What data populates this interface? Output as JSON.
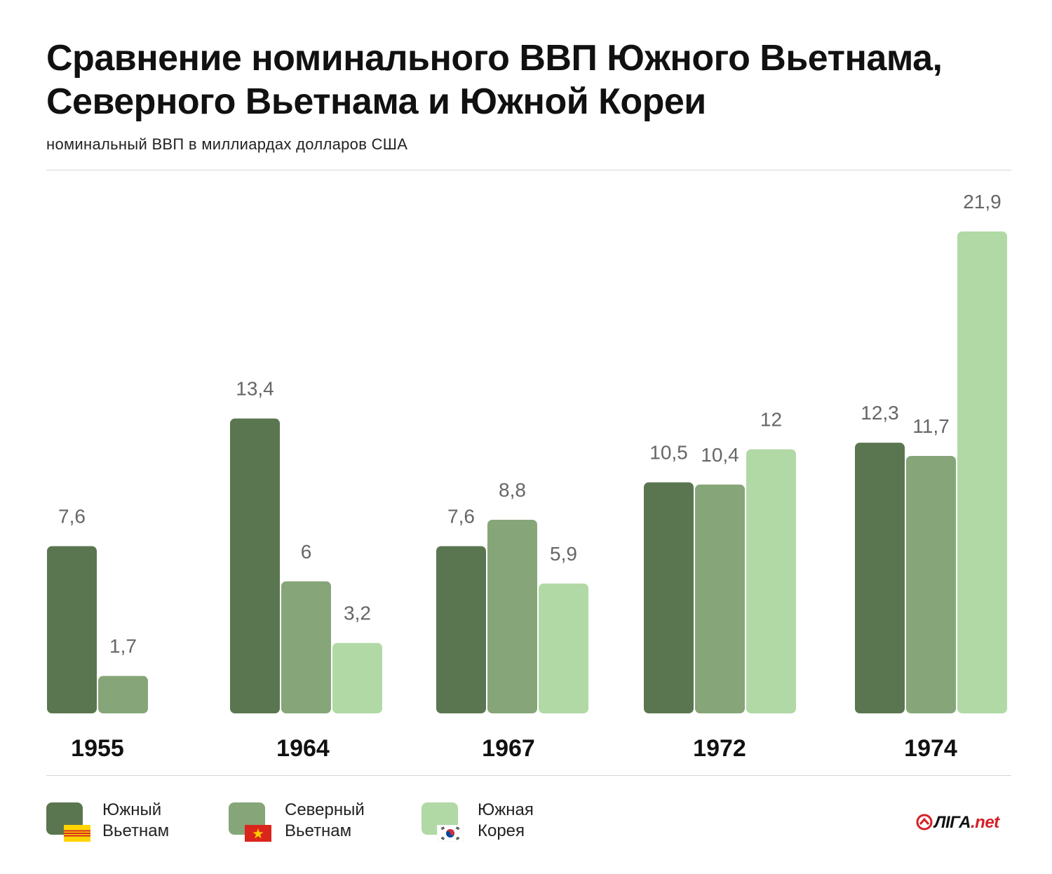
{
  "title": "Сравнение номинального ВВП Южного Вьетнама, Северного Вьетнама и Южной Кореи",
  "subtitle": "номинальный ВВП в миллиардах долларов США",
  "colors": {
    "south_vietnam": "#5a7650",
    "north_vietnam": "#86a679",
    "south_korea": "#b1d9a5"
  },
  "legend": [
    {
      "label": "Южный\nВьетнам",
      "color_key": "south_vietnam",
      "flag": "south-vietnam-flag-icon"
    },
    {
      "label": "Северный\nВьетнам",
      "color_key": "north_vietnam",
      "flag": "vietnam-flag-icon"
    },
    {
      "label": "Южная\nКорея",
      "color_key": "south_korea",
      "flag": "south-korea-flag-icon"
    }
  ],
  "logo": {
    "main": "ЛIГА",
    "suffix": ".net"
  },
  "chart_data": {
    "type": "bar",
    "categories": [
      "1955",
      "1964",
      "1967",
      "1972",
      "1974"
    ],
    "series": [
      {
        "name": "Южный Вьетнам",
        "values": [
          7.6,
          13.4,
          7.6,
          10.5,
          12.3
        ],
        "labels": [
          "7,6",
          "13,4",
          "7,6",
          "10,5",
          "12,3"
        ]
      },
      {
        "name": "Северный Вьетнам",
        "values": [
          1.7,
          6,
          8.8,
          10.4,
          11.7
        ],
        "labels": [
          "1,7",
          "6",
          "8,8",
          "10,4",
          "11,7"
        ]
      },
      {
        "name": "Южная Корея",
        "values": [
          null,
          3.2,
          5.9,
          12,
          21.9
        ],
        "labels": [
          null,
          "3,2",
          "5,9",
          "12",
          "21,9"
        ]
      }
    ],
    "ylabel": "номинальный ВВП в миллиардах долларов США",
    "ylim": [
      0,
      21.9
    ],
    "grid": false,
    "legend_position": "bottom"
  }
}
